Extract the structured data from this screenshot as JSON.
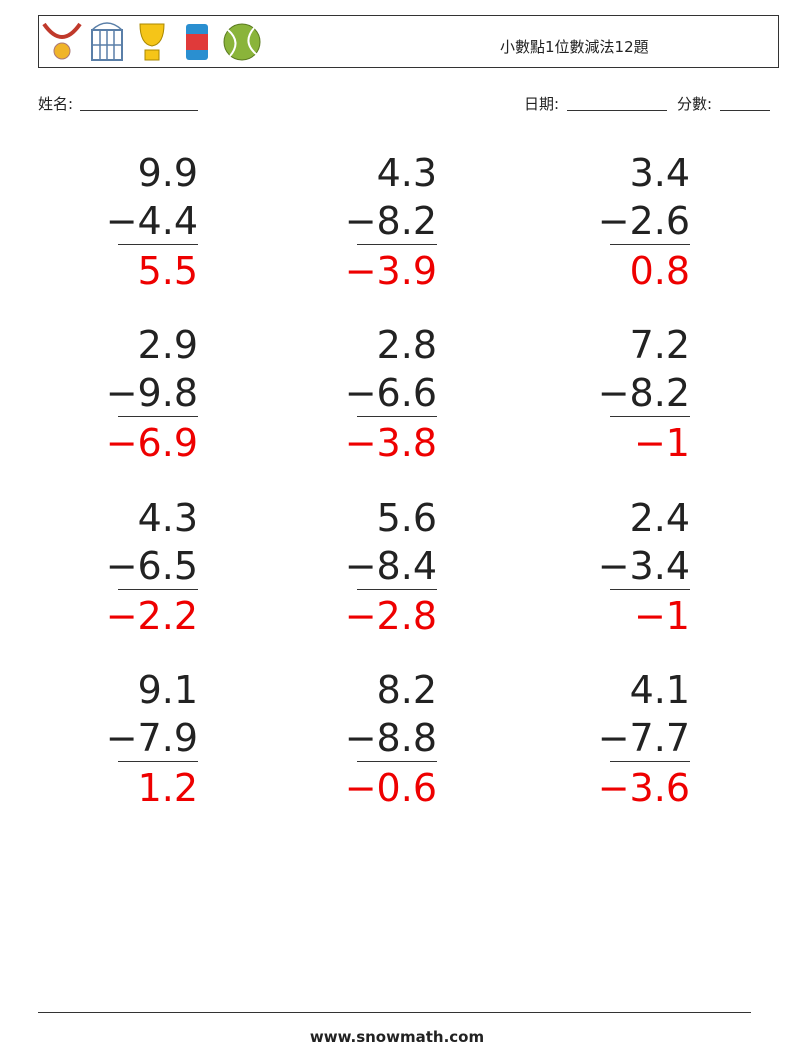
{
  "header": {
    "title": "小數點1位數減法12題"
  },
  "fields": {
    "name": "姓名:",
    "date": "日期:",
    "score": "分數:"
  },
  "problems": [
    {
      "top": "9.9",
      "bottom": "−4.4",
      "answer": "5.5"
    },
    {
      "top": "4.3",
      "bottom": "−8.2",
      "answer": "−3.9"
    },
    {
      "top": "3.4",
      "bottom": "−2.6",
      "answer": "0.8"
    },
    {
      "top": "2.9",
      "bottom": "−9.8",
      "answer": "−6.9"
    },
    {
      "top": "2.8",
      "bottom": "−6.6",
      "answer": "−3.8"
    },
    {
      "top": "7.2",
      "bottom": "−8.2",
      "answer": "−1"
    },
    {
      "top": "4.3",
      "bottom": "−6.5",
      "answer": "−2.2"
    },
    {
      "top": "5.6",
      "bottom": "−8.4",
      "answer": "−2.8"
    },
    {
      "top": "2.4",
      "bottom": "−3.4",
      "answer": "−1"
    },
    {
      "top": "9.1",
      "bottom": "−7.9",
      "answer": "1.2"
    },
    {
      "top": "8.2",
      "bottom": "−8.8",
      "answer": "−0.6"
    },
    {
      "top": "4.1",
      "bottom": "−7.7",
      "answer": "−3.6"
    }
  ],
  "footer": {
    "url": "www.snowmath.com"
  }
}
